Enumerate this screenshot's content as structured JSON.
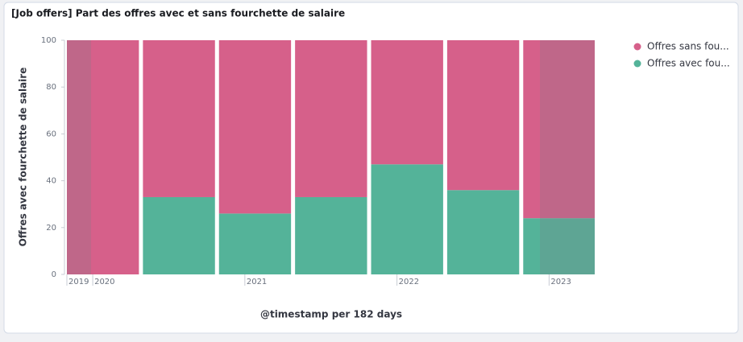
{
  "chart_data": {
    "type": "stacked-bar",
    "title": "[Job offers] Part des offres avec et sans fourchette de salaire",
    "y_label": "Offres avec fourchette de salaire",
    "x_label": "@timestamp per 182 days",
    "x": [
      2019.83,
      2020.33,
      2020.83,
      2021.33,
      2021.83,
      2022.33,
      2022.83
    ],
    "bar_width": 0.5,
    "xlim": [
      2019.83,
      2023.3
    ],
    "xticks": [
      {
        "value": 2019.83,
        "label": "2019"
      },
      2020,
      2021,
      2022,
      2023
    ],
    "ylim": [
      0,
      100
    ],
    "yticks": [
      0,
      20,
      40,
      60,
      80,
      100
    ],
    "grid": false,
    "legend": "right",
    "series": [
      {
        "name": "Offres sans fou...",
        "color": "#d6608a",
        "values": [
          100,
          67,
          74,
          67,
          53,
          64,
          76
        ]
      },
      {
        "name": "Offres avec fou...",
        "color": "#54b399",
        "values": [
          0,
          33,
          26,
          33,
          47,
          36,
          24
        ]
      }
    ]
  }
}
